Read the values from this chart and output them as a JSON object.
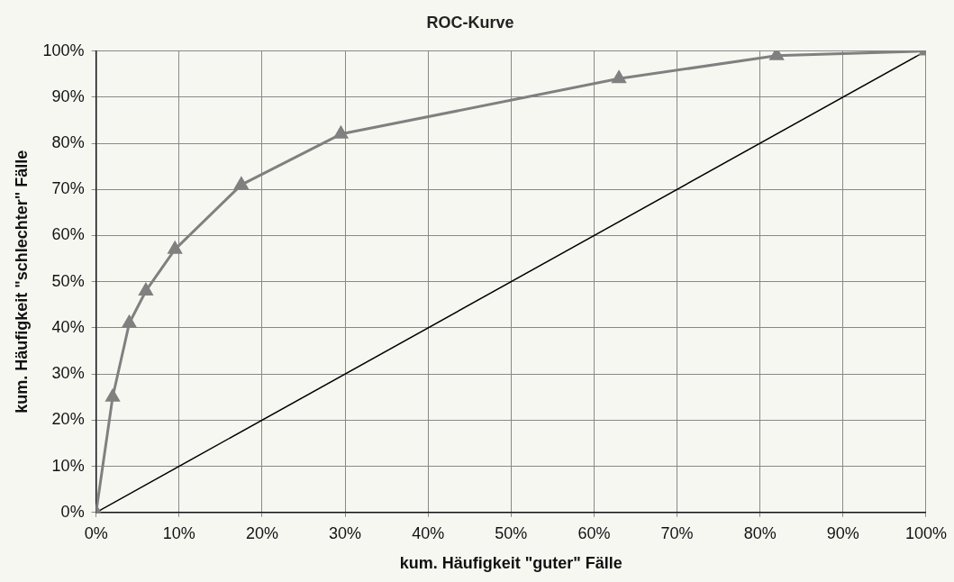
{
  "chart_data": {
    "type": "line",
    "title": "ROC-Kurve",
    "xlabel": "kum. Häufigkeit \"guter\" Fälle",
    "ylabel": "kum. Häufigkeit \"schlechter\" Fälle",
    "series": [
      {
        "color": "#808080",
        "marker": "triangle",
        "x": [
          0,
          2,
          4,
          6,
          9.5,
          17.5,
          29.5,
          63,
          82,
          100
        ],
        "values": [
          0,
          25,
          41,
          48,
          57,
          71,
          82,
          94,
          99,
          100
        ]
      },
      {
        "color": "#000000",
        "marker": "none",
        "x": [
          0,
          100
        ],
        "values": [
          0,
          100
        ]
      }
    ],
    "xlim": [
      0,
      100
    ],
    "ylim": [
      0,
      100
    ],
    "xticks": [
      {
        "value": 0,
        "label": "0%"
      },
      {
        "value": 10,
        "label": "10%"
      },
      {
        "value": 20,
        "label": "20%"
      },
      {
        "value": 30,
        "label": "30%"
      },
      {
        "value": 40,
        "label": "40%"
      },
      {
        "value": 50,
        "label": "50%"
      },
      {
        "value": 60,
        "label": "60%"
      },
      {
        "value": 70,
        "label": "70%"
      },
      {
        "value": 80,
        "label": "80%"
      },
      {
        "value": 90,
        "label": "90%"
      },
      {
        "value": 100,
        "label": "100%"
      }
    ],
    "yticks": [
      {
        "value": 0,
        "label": "0%"
      },
      {
        "value": 10,
        "label": "10%"
      },
      {
        "value": 20,
        "label": "20%"
      },
      {
        "value": 30,
        "label": "30%"
      },
      {
        "value": 40,
        "label": "40%"
      },
      {
        "value": 50,
        "label": "50%"
      },
      {
        "value": 60,
        "label": "60%"
      },
      {
        "value": 70,
        "label": "70%"
      },
      {
        "value": 80,
        "label": "80%"
      },
      {
        "value": 90,
        "label": "90%"
      },
      {
        "value": 100,
        "label": "100%"
      }
    ],
    "grid": true,
    "line_style": "solid"
  }
}
